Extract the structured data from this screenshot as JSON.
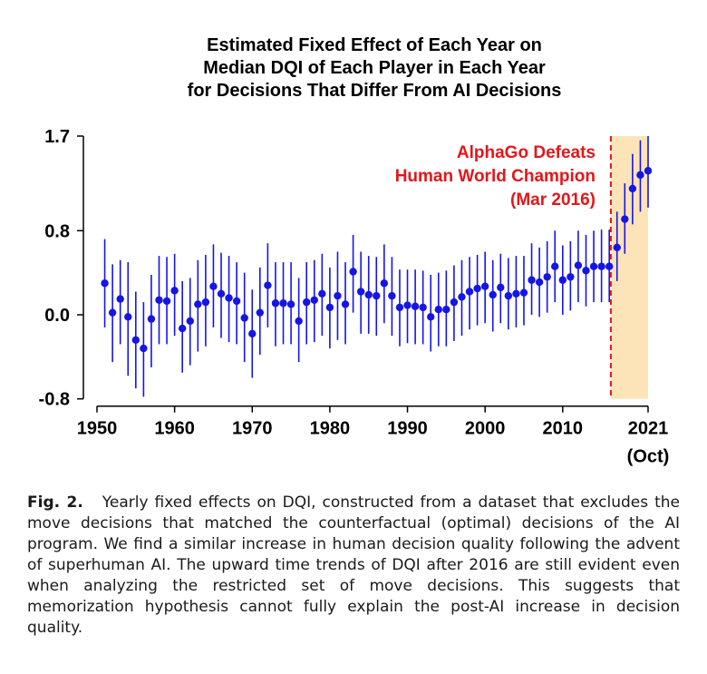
{
  "chart_data": {
    "type": "scatter",
    "title_lines": [
      "Estimated Fixed Effect of Each Year on",
      "Median DQI of Each Player in Each Year",
      "for Decisions That Differ From AI Decisions"
    ],
    "xlabel": "",
    "ylabel": "",
    "xlim": [
      1950,
      2021
    ],
    "ylim": [
      -0.8,
      1.7
    ],
    "x_ticks": [
      1950,
      1960,
      1970,
      1980,
      1990,
      2000,
      2010,
      2021
    ],
    "x_tick_labels": [
      "1950",
      "1960",
      "1970",
      "1980",
      "1990",
      "2000",
      "2010",
      "2021"
    ],
    "x_tick_sublabel": "(Oct)",
    "y_ticks": [
      -0.8,
      0.0,
      0.8,
      1.7
    ],
    "y_tick_labels": [
      "-0.8",
      "0.0",
      "0.8",
      "1.7"
    ],
    "grid": false,
    "point_color": "#1515e6",
    "annotation": {
      "lines": [
        "AlphaGo Defeats",
        "Human World Champion",
        "(Mar 2016)"
      ],
      "color": "#e3161b",
      "x": 2016.2
    },
    "shaded_region": {
      "x0": 2016.2,
      "x1": 2021,
      "color": "#fde3b8"
    },
    "points": [
      {
        "x": 1951,
        "y": 0.3,
        "lo": -0.12,
        "hi": 0.72
      },
      {
        "x": 1952,
        "y": 0.02,
        "lo": -0.45,
        "hi": 0.48
      },
      {
        "x": 1953,
        "y": 0.15,
        "lo": -0.28,
        "hi": 0.52
      },
      {
        "x": 1954,
        "y": -0.02,
        "lo": -0.58,
        "hi": 0.5
      },
      {
        "x": 1955,
        "y": -0.24,
        "lo": -0.7,
        "hi": 0.22
      },
      {
        "x": 1956,
        "y": -0.32,
        "lo": -0.78,
        "hi": 0.12
      },
      {
        "x": 1957,
        "y": -0.04,
        "lo": -0.5,
        "hi": 0.38
      },
      {
        "x": 1958,
        "y": 0.14,
        "lo": -0.28,
        "hi": 0.56
      },
      {
        "x": 1959,
        "y": 0.13,
        "lo": -0.28,
        "hi": 0.55
      },
      {
        "x": 1960,
        "y": 0.23,
        "lo": -0.2,
        "hi": 0.58
      },
      {
        "x": 1961,
        "y": -0.13,
        "lo": -0.55,
        "hi": 0.32
      },
      {
        "x": 1962,
        "y": -0.06,
        "lo": -0.48,
        "hi": 0.35
      },
      {
        "x": 1963,
        "y": 0.1,
        "lo": -0.35,
        "hi": 0.52
      },
      {
        "x": 1964,
        "y": 0.12,
        "lo": -0.3,
        "hi": 0.57
      },
      {
        "x": 1965,
        "y": 0.27,
        "lo": -0.12,
        "hi": 0.67
      },
      {
        "x": 1966,
        "y": 0.2,
        "lo": -0.22,
        "hi": 0.59
      },
      {
        "x": 1967,
        "y": 0.16,
        "lo": -0.26,
        "hi": 0.56
      },
      {
        "x": 1968,
        "y": 0.13,
        "lo": -0.28,
        "hi": 0.5
      },
      {
        "x": 1969,
        "y": -0.03,
        "lo": -0.45,
        "hi": 0.4
      },
      {
        "x": 1970,
        "y": -0.18,
        "lo": -0.6,
        "hi": 0.24
      },
      {
        "x": 1971,
        "y": 0.02,
        "lo": -0.38,
        "hi": 0.45
      },
      {
        "x": 1972,
        "y": 0.28,
        "lo": -0.12,
        "hi": 0.68
      },
      {
        "x": 1973,
        "y": 0.11,
        "lo": -0.3,
        "hi": 0.5
      },
      {
        "x": 1974,
        "y": 0.11,
        "lo": -0.28,
        "hi": 0.5
      },
      {
        "x": 1975,
        "y": 0.1,
        "lo": -0.28,
        "hi": 0.5
      },
      {
        "x": 1976,
        "y": -0.06,
        "lo": -0.45,
        "hi": 0.35
      },
      {
        "x": 1977,
        "y": 0.12,
        "lo": -0.28,
        "hi": 0.5
      },
      {
        "x": 1978,
        "y": 0.14,
        "lo": -0.26,
        "hi": 0.52
      },
      {
        "x": 1979,
        "y": 0.2,
        "lo": -0.2,
        "hi": 0.58
      },
      {
        "x": 1980,
        "y": 0.07,
        "lo": -0.32,
        "hi": 0.45
      },
      {
        "x": 1981,
        "y": 0.18,
        "lo": -0.24,
        "hi": 0.6
      },
      {
        "x": 1982,
        "y": 0.1,
        "lo": -0.28,
        "hi": 0.5
      },
      {
        "x": 1983,
        "y": 0.41,
        "lo": 0.02,
        "hi": 0.76
      },
      {
        "x": 1984,
        "y": 0.22,
        "lo": -0.18,
        "hi": 0.6
      },
      {
        "x": 1985,
        "y": 0.19,
        "lo": -0.18,
        "hi": 0.56
      },
      {
        "x": 1986,
        "y": 0.18,
        "lo": -0.2,
        "hi": 0.55
      },
      {
        "x": 1987,
        "y": 0.3,
        "lo": -0.08,
        "hi": 0.67
      },
      {
        "x": 1988,
        "y": 0.18,
        "lo": -0.2,
        "hi": 0.55
      },
      {
        "x": 1989,
        "y": 0.07,
        "lo": -0.3,
        "hi": 0.43
      },
      {
        "x": 1990,
        "y": 0.09,
        "lo": -0.27,
        "hi": 0.43
      },
      {
        "x": 1991,
        "y": 0.08,
        "lo": -0.28,
        "hi": 0.43
      },
      {
        "x": 1992,
        "y": 0.07,
        "lo": -0.28,
        "hi": 0.42
      },
      {
        "x": 1993,
        "y": -0.02,
        "lo": -0.35,
        "hi": 0.38
      },
      {
        "x": 1994,
        "y": 0.05,
        "lo": -0.3,
        "hi": 0.4
      },
      {
        "x": 1995,
        "y": 0.05,
        "lo": -0.3,
        "hi": 0.42
      },
      {
        "x": 1996,
        "y": 0.12,
        "lo": -0.25,
        "hi": 0.47
      },
      {
        "x": 1997,
        "y": 0.17,
        "lo": -0.2,
        "hi": 0.52
      },
      {
        "x": 1998,
        "y": 0.22,
        "lo": -0.14,
        "hi": 0.55
      },
      {
        "x": 1999,
        "y": 0.25,
        "lo": -0.1,
        "hi": 0.57
      },
      {
        "x": 2000,
        "y": 0.27,
        "lo": -0.08,
        "hi": 0.6
      },
      {
        "x": 2001,
        "y": 0.19,
        "lo": -0.16,
        "hi": 0.52
      },
      {
        "x": 2002,
        "y": 0.26,
        "lo": -0.08,
        "hi": 0.58
      },
      {
        "x": 2003,
        "y": 0.18,
        "lo": -0.14,
        "hi": 0.54
      },
      {
        "x": 2004,
        "y": 0.2,
        "lo": -0.12,
        "hi": 0.56
      },
      {
        "x": 2005,
        "y": 0.21,
        "lo": -0.1,
        "hi": 0.56
      },
      {
        "x": 2006,
        "y": 0.33,
        "lo": 0.0,
        "hi": 0.68
      },
      {
        "x": 2007,
        "y": 0.31,
        "lo": -0.02,
        "hi": 0.64
      },
      {
        "x": 2008,
        "y": 0.36,
        "lo": 0.02,
        "hi": 0.7
      },
      {
        "x": 2009,
        "y": 0.46,
        "lo": 0.12,
        "hi": 0.8
      },
      {
        "x": 2010,
        "y": 0.33,
        "lo": 0.0,
        "hi": 0.66
      },
      {
        "x": 2011,
        "y": 0.36,
        "lo": 0.04,
        "hi": 0.7
      },
      {
        "x": 2012,
        "y": 0.47,
        "lo": 0.12,
        "hi": 0.8
      },
      {
        "x": 2013,
        "y": 0.42,
        "lo": 0.08,
        "hi": 0.76
      },
      {
        "x": 2014,
        "y": 0.46,
        "lo": 0.12,
        "hi": 0.8
      },
      {
        "x": 2015,
        "y": 0.46,
        "lo": 0.12,
        "hi": 0.81
      },
      {
        "x": 2016,
        "y": 0.46,
        "lo": 0.12,
        "hi": 0.81
      },
      {
        "x": 2017,
        "y": 0.64,
        "lo": 0.32,
        "hi": 0.98
      },
      {
        "x": 2018,
        "y": 0.91,
        "lo": 0.58,
        "hi": 1.25
      },
      {
        "x": 2019,
        "y": 1.2,
        "lo": 0.86,
        "hi": 1.53
      },
      {
        "x": 2020,
        "y": 1.33,
        "lo": 0.98,
        "hi": 1.66
      },
      {
        "x": 2021,
        "y": 1.37,
        "lo": 1.02,
        "hi": 1.7
      }
    ]
  },
  "caption": {
    "label": "Fig. 2.",
    "text": "Yearly fixed effects on DQI, constructed from a dataset that excludes the move decisions that matched the counterfactual (optimal) decisions of the AI program. We find a similar increase in human decision quality following the advent of superhuman AI. The upward time trends of DQI after 2016 are still evident even when analyzing the restricted set of move decisions. This suggests that memorization hypothesis cannot fully explain the post-AI increase in decision quality."
  }
}
